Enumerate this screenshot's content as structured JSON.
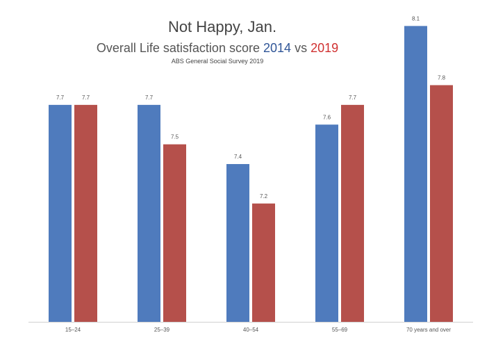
{
  "chart_data": {
    "type": "bar",
    "title": "Not Happy, Jan.",
    "subtitle_parts": [
      "Overall Life satisfaction score",
      "vs"
    ],
    "source": "ABS General Social  Survey 2019",
    "categories": [
      "15–24",
      "25–39",
      "40–54",
      "55–69",
      "70 years and over"
    ],
    "series": [
      {
        "name": "2014",
        "color": "#4f7bbd",
        "values": [
          7.7,
          7.7,
          7.4,
          7.6,
          8.1
        ]
      },
      {
        "name": "2019",
        "color": "#b5504b",
        "values": [
          7.7,
          7.5,
          7.2,
          7.7,
          7.8
        ]
      }
    ],
    "ylim": [
      6.6,
      8.2
    ]
  }
}
